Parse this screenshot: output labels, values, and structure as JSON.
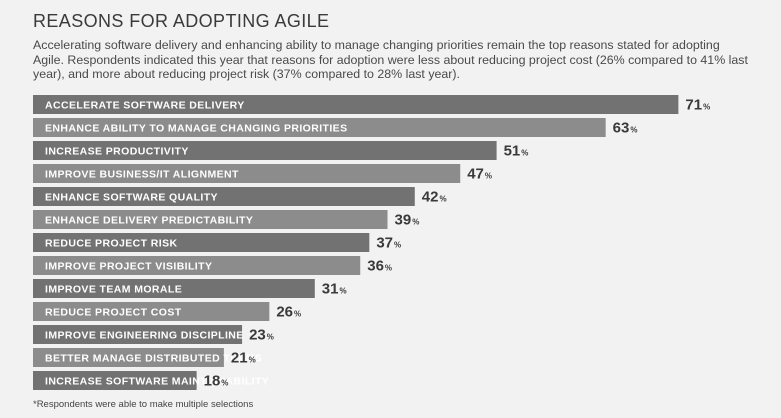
{
  "title": "REASONS FOR ADOPTING AGILE",
  "subtitle": "Accelerating software delivery and enhancing ability to manage changing priorities remain the top reasons stated for adopting Agile. Respondents indicated this year that reasons for adoption were less about reducing project cost (26% compared to 41% last year), and more about reducing project risk (37% compared to 28% last year).",
  "footnote": "*Respondents were able to make multiple selections",
  "unit": "%",
  "colors": {
    "dark_bar": "#727272",
    "light_bar": "#8c8c8c",
    "background": "#f2f2f2"
  },
  "chart_data": {
    "type": "bar",
    "orientation": "horizontal",
    "categories": [
      "ACCELERATE SOFTWARE DELIVERY",
      "ENHANCE ABILITY TO MANAGE CHANGING PRIORITIES",
      "INCREASE PRODUCTIVITY",
      "IMPROVE BUSINESS/IT ALIGNMENT",
      "ENHANCE SOFTWARE QUALITY",
      "ENHANCE DELIVERY PREDICTABILITY",
      "REDUCE PROJECT RISK",
      "IMPROVE PROJECT VISIBILITY",
      "IMPROVE TEAM MORALE",
      "REDUCE PROJECT COST",
      "IMPROVE ENGINEERING DISCIPLINE",
      "BETTER MANAGE DISTRIBUTED TEAMS",
      "INCREASE SOFTWARE MAINTAINABILITY"
    ],
    "values": [
      71,
      63,
      51,
      47,
      42,
      39,
      37,
      36,
      31,
      26,
      23,
      21,
      18
    ],
    "value_labels": [
      "71",
      "63",
      "51",
      "47",
      "42",
      "39",
      "37",
      "36",
      "31",
      "26",
      "23",
      "21",
      "18"
    ],
    "xlim": [
      0,
      100
    ],
    "grid": false,
    "legend": "none"
  }
}
